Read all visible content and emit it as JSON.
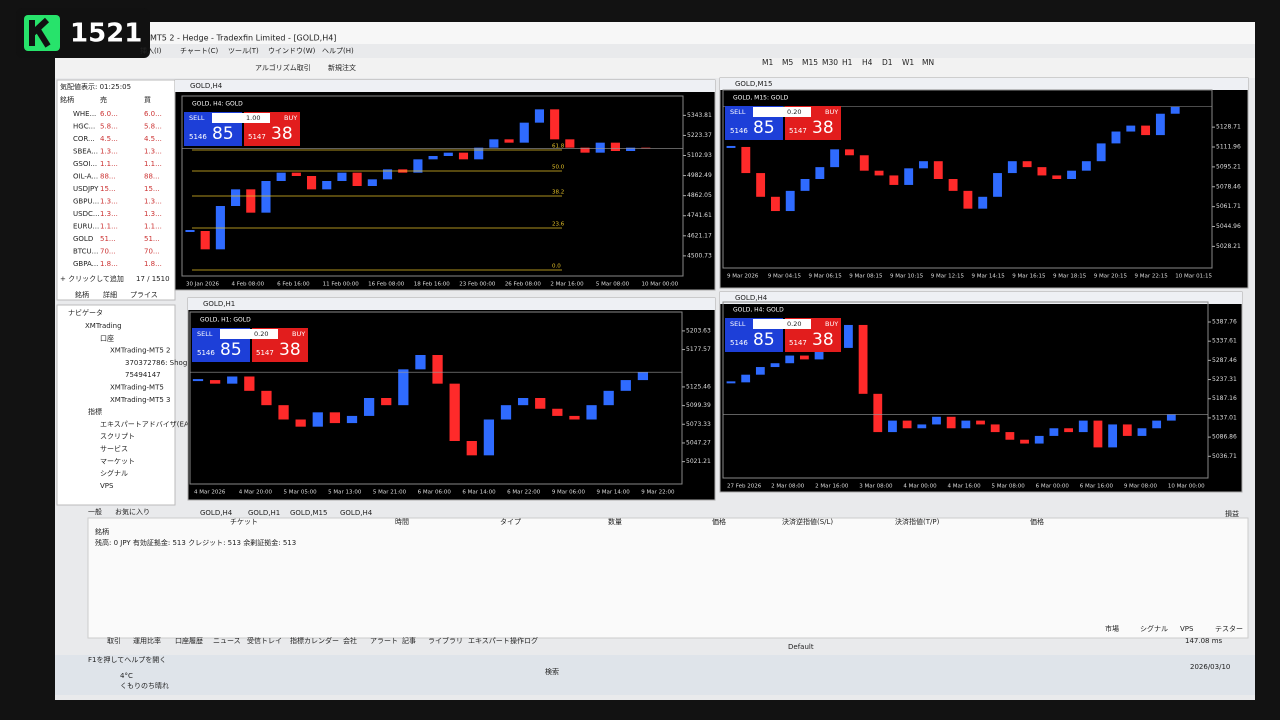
{
  "overlay": {
    "badge": "1521"
  },
  "window": {
    "title": "MT5 2 - Hedge - Tradexfin Limited - [GOLD,H4]",
    "menu": [
      "挿入(I)",
      "チャート(C)",
      "ツール(T)",
      "ウインドウ(W)",
      "ヘルプ(H)"
    ],
    "toolbar": [
      "アルゴリズム取引",
      "新規注文"
    ],
    "timeframes": [
      "M1",
      "M5",
      "M15",
      "M30",
      "H1",
      "H4",
      "D1",
      "W1",
      "MN"
    ]
  },
  "market_watch": {
    "title": "気配値表示: 01:25:05",
    "header": [
      "銘柄",
      "売",
      "買"
    ],
    "rows": [
      [
        "WHE...",
        "6.0...",
        "6.0..."
      ],
      [
        "HGC...",
        "5.8...",
        "5.8..."
      ],
      [
        "COR...",
        "4.5...",
        "4.5..."
      ],
      [
        "SBEA...",
        "1.3...",
        "1.3..."
      ],
      [
        "GSOI...",
        "1.1...",
        "1.1..."
      ],
      [
        "OIL-A...",
        "88...",
        "88..."
      ],
      [
        "USDJPY",
        "15...",
        "15..."
      ],
      [
        "GBPU...",
        "1.3...",
        "1.3..."
      ],
      [
        "USDC...",
        "1.3...",
        "1.3..."
      ],
      [
        "EURU...",
        "1.1...",
        "1.1..."
      ],
      [
        "GOLD",
        "51...",
        "51..."
      ],
      [
        "BTCU...",
        "70...",
        "70..."
      ],
      [
        "GBPA...",
        "1.8...",
        "1.8..."
      ]
    ],
    "add": "+ クリックして追加",
    "count": "17 / 1510",
    "tabs": [
      "銘柄",
      "詳細",
      "プライス"
    ]
  },
  "navigator": {
    "title": "ナビゲータ",
    "items": [
      "XMTrading",
      "口座",
      "XMTrading-MT5 2",
      "370372786: Shog",
      "75494147",
      "XMTrading-MT5",
      "XMTrading-MT5 3",
      "指標",
      "エキスパートアドバイザ(EA)",
      "スクリプト",
      "サービス",
      "マーケット",
      "シグナル",
      "VPS"
    ],
    "tabs": [
      "一般",
      "お気に入り"
    ]
  },
  "charts": [
    {
      "window": "GOLD,H4",
      "label": "GOLD, H4: GOLD",
      "sell": "SELL",
      "buy": "BUY",
      "lot": "1.00",
      "bid_pre": "5146",
      "bid": "85",
      "ask_pre": "5147",
      "ask": "38",
      "ylim": [
        4380,
        5460
      ],
      "yticks": [
        5343.81,
        5223.37,
        5102.93,
        4982.49,
        4862.05,
        4741.61,
        4621.17,
        4500.73
      ],
      "xticks": [
        "30 Jan 2026",
        "4 Feb 08:00",
        "6 Feb 16:00",
        "11 Feb 00:00",
        "16 Feb 08:00",
        "18 Feb 16:00",
        "23 Feb 00:00",
        "26 Feb 08:00",
        "2 Mar 16:00",
        "5 Mar 08:00",
        "10 Mar 00:00"
      ],
      "values": [
        4650,
        4540,
        4800,
        4900,
        4760,
        4950,
        5000,
        4980,
        4900,
        4950,
        5000,
        4920,
        4960,
        5020,
        5000,
        5080,
        5100,
        5120,
        5080,
        5150,
        5200,
        5180,
        5300,
        5380,
        5200,
        5150,
        5120,
        5180,
        5130,
        5150,
        5146
      ],
      "fib": [
        "61.8",
        "50.0",
        "38.2",
        "23.6",
        "0.0"
      ]
    },
    {
      "window": "GOLD,M15",
      "label": "GOLD, M15: GOLD",
      "sell": "SELL",
      "buy": "BUY",
      "lot": "0.20",
      "bid_pre": "5146",
      "bid": "85",
      "ask_pre": "5147",
      "ask": "38",
      "ylim": [
        5010,
        5160
      ],
      "yticks": [
        5128.71,
        5111.96,
        5095.21,
        5078.46,
        5061.71,
        5044.96,
        5028.21
      ],
      "xticks": [
        "9 Mar 2026",
        "9 Mar 04:15",
        "9 Mar 06:15",
        "9 Mar 08:15",
        "9 Mar 10:15",
        "9 Mar 12:15",
        "9 Mar 14:15",
        "9 Mar 16:15",
        "9 Mar 18:15",
        "9 Mar 20:15",
        "9 Mar 22:15",
        "10 Mar 01:15"
      ],
      "values": [
        5112,
        5090,
        5070,
        5058,
        5075,
        5085,
        5095,
        5110,
        5105,
        5092,
        5088,
        5080,
        5094,
        5100,
        5085,
        5075,
        5060,
        5070,
        5090,
        5100,
        5095,
        5088,
        5085,
        5092,
        5100,
        5115,
        5125,
        5130,
        5122,
        5140,
        5146
      ]
    },
    {
      "window": "GOLD,H1",
      "label": "GOLD, H1: GOLD",
      "sell": "SELL",
      "buy": "BUY",
      "lot": "0.20",
      "bid_pre": "5146",
      "bid": "85",
      "ask_pre": "5147",
      "ask": "38",
      "ylim": [
        4990,
        5230
      ],
      "yticks": [
        5203.63,
        5177.57,
        5125.46,
        5099.39,
        5073.33,
        5047.27,
        5021.21
      ],
      "xticks": [
        "4 Mar 2026",
        "4 Mar 20:00",
        "5 Mar 05:00",
        "5 Mar 13:00",
        "5 Mar 21:00",
        "6 Mar 06:00",
        "6 Mar 14:00",
        "6 Mar 22:00",
        "9 Mar 06:00",
        "9 Mar 14:00",
        "9 Mar 22:00"
      ],
      "values": [
        5135,
        5130,
        5140,
        5120,
        5100,
        5080,
        5070,
        5090,
        5075,
        5085,
        5110,
        5100,
        5150,
        5170,
        5130,
        5050,
        5030,
        5080,
        5100,
        5110,
        5095,
        5085,
        5080,
        5100,
        5120,
        5135,
        5146
      ]
    },
    {
      "window": "GOLD,H4",
      "label": "GOLD, H4: GOLD",
      "sell": "SELL",
      "buy": "BUY",
      "lot": "0.20",
      "bid_pre": "5146",
      "bid": "85",
      "ask_pre": "5147",
      "ask": "38",
      "ylim": [
        4980,
        5440
      ],
      "yticks": [
        5387.76,
        5337.61,
        5287.46,
        5237.31,
        5187.16,
        5137.01,
        5086.86,
        5036.71
      ],
      "xticks": [
        "27 Feb 2026",
        "2 Mar 08:00",
        "2 Mar 16:00",
        "3 Mar 08:00",
        "4 Mar 00:00",
        "4 Mar 16:00",
        "5 Mar 08:00",
        "6 Mar 00:00",
        "6 Mar 16:00",
        "9 Mar 08:00",
        "10 Mar 00:00"
      ],
      "values": [
        5230,
        5250,
        5270,
        5280,
        5300,
        5290,
        5310,
        5320,
        5380,
        5200,
        5100,
        5130,
        5110,
        5120,
        5140,
        5110,
        5130,
        5120,
        5100,
        5080,
        5070,
        5090,
        5110,
        5100,
        5130,
        5060,
        5120,
        5090,
        5110,
        5130,
        5146
      ]
    }
  ],
  "chart_tabs": [
    "GOLD,H4",
    "GOLD,H1",
    "GOLD,M15",
    "GOLD,H4"
  ],
  "toolbox": {
    "symbol": "銘柄",
    "columns": [
      "チケット",
      "時間",
      "タイプ",
      "数量",
      "価格",
      "決済逆指値(S/L)",
      "決済指値(T/P)",
      "価格"
    ],
    "profit": "損益",
    "balance": "残高: 0 JPY 有効証拠金: 513 クレジット: 513 余剰証拠金: 513",
    "tabs": [
      "取引",
      "運用比率",
      "口座履歴",
      "ニュース",
      "受信トレイ",
      "指標カレンダー",
      "会社",
      "アラート",
      "記事",
      "ライブラリ",
      "エキスパート",
      "操作ログ"
    ]
  },
  "status": {
    "help": "F1を押してヘルプを開く",
    "profile": "Default",
    "right": [
      "市場",
      "シグナル",
      "VPS",
      "テスター"
    ],
    "ping": "147.08 ms"
  },
  "taskbar": {
    "temp": "4°C",
    "weather": "くもりのち晴れ",
    "search": "検索",
    "date": "2026/03/10"
  }
}
